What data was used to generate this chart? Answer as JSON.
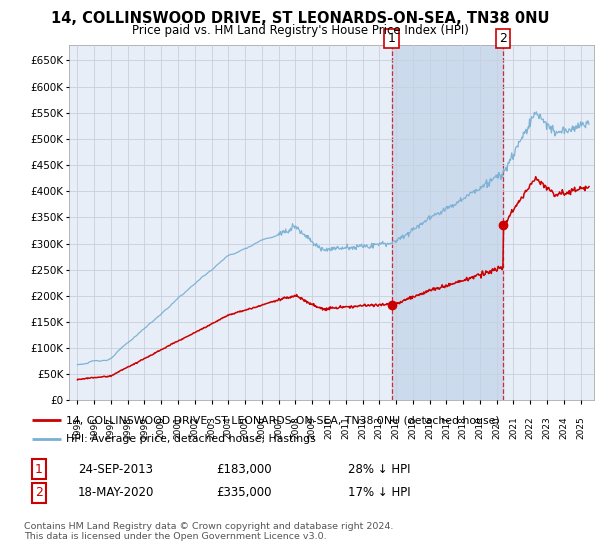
{
  "title": "14, COLLINSWOOD DRIVE, ST LEONARDS-ON-SEA, TN38 0NU",
  "subtitle": "Price paid vs. HM Land Registry's House Price Index (HPI)",
  "legend_line1": "14, COLLINSWOOD DRIVE, ST LEONARDS-ON-SEA, TN38 0NU (detached house)",
  "legend_line2": "HPI: Average price, detached house, Hastings",
  "annotation1_date": "24-SEP-2013",
  "annotation1_price": "£183,000",
  "annotation1_hpi": "28% ↓ HPI",
  "annotation2_date": "18-MAY-2020",
  "annotation2_price": "£335,000",
  "annotation2_hpi": "17% ↓ HPI",
  "footer": "Contains HM Land Registry data © Crown copyright and database right 2024.\nThis data is licensed under the Open Government Licence v3.0.",
  "purchase1_x": 2013.73,
  "purchase1_y": 183000,
  "purchase2_x": 2020.38,
  "purchase2_y": 335000,
  "property_color": "#cc0000",
  "hpi_color": "#7ab0d4",
  "background_color": "#ffffff",
  "chart_bg_color": "#e8eef8",
  "grid_color": "#c8d0dc",
  "shade_color": "#ccdaee",
  "ylim_min": 0,
  "ylim_max": 680000,
  "xlim_min": 1994.5,
  "xlim_max": 2025.8,
  "yticks": [
    0,
    50000,
    100000,
    150000,
    200000,
    250000,
    300000,
    350000,
    400000,
    450000,
    500000,
    550000,
    600000,
    650000
  ],
  "xticks": [
    1995,
    1996,
    1997,
    1998,
    1999,
    2000,
    2001,
    2002,
    2003,
    2004,
    2005,
    2006,
    2007,
    2008,
    2009,
    2010,
    2011,
    2012,
    2013,
    2014,
    2015,
    2016,
    2017,
    2018,
    2019,
    2020,
    2021,
    2022,
    2023,
    2024,
    2025
  ],
  "shade_x1": 2013.73,
  "shade_x2": 2020.38
}
